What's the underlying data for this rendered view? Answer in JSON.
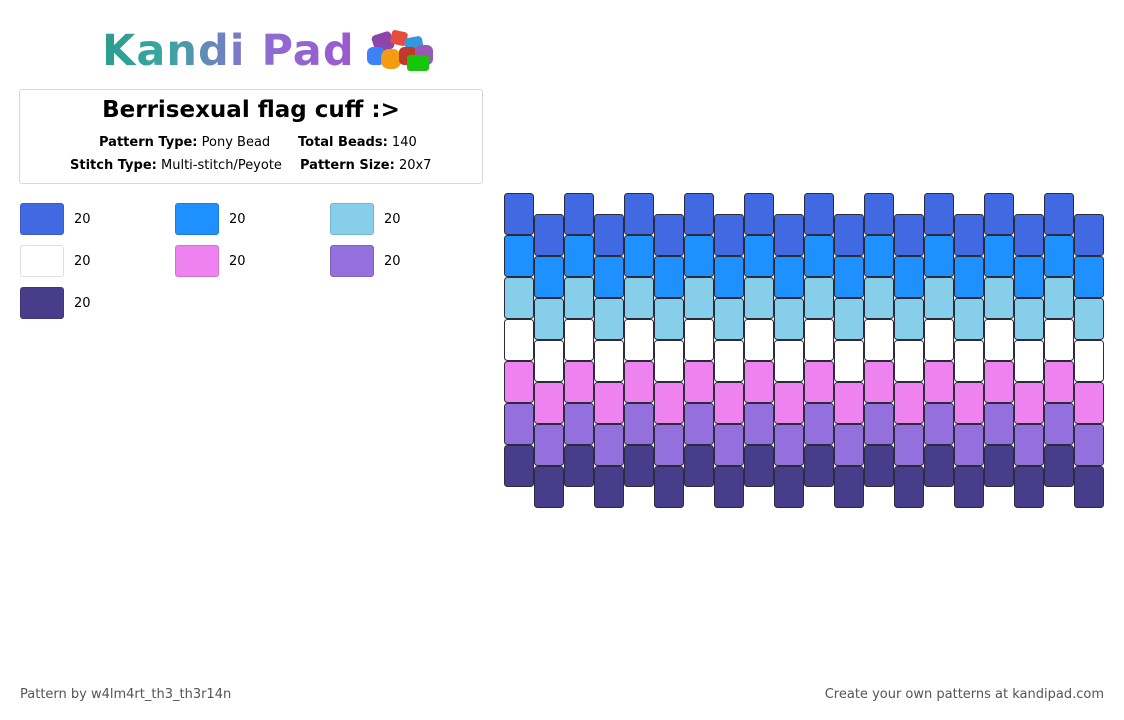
{
  "brand": {
    "name": "Kandi Pad"
  },
  "pattern": {
    "title": "Berrisexual flag cuff :>",
    "type_label": "Pattern Type:",
    "type_value": "Pony Bead",
    "beads_label": "Total Beads:",
    "beads_value": "140",
    "stitch_label": "Stitch Type:",
    "stitch_value": "Multi-stitch/Peyote",
    "size_label": "Pattern Size:",
    "size_value": "20x7"
  },
  "legend": [
    {
      "color": "#4169e1",
      "count": "20"
    },
    {
      "color": "#1e90ff",
      "count": "20"
    },
    {
      "color": "#87ceeb",
      "count": "20"
    },
    {
      "color": "#ffffff",
      "count": "20"
    },
    {
      "color": "#ee82ee",
      "count": "20"
    },
    {
      "color": "#9370db",
      "count": "20"
    },
    {
      "color": "#483d8b",
      "count": "20"
    }
  ],
  "grid": {
    "columns": 20,
    "rows": 7,
    "row_colors": [
      "#4169e1",
      "#1e90ff",
      "#87ceeb",
      "#ffffff",
      "#ee82ee",
      "#9370db",
      "#483d8b"
    ]
  },
  "footer": {
    "left": "Pattern by w4lm4rt_th3_th3r14n",
    "right": "Create your own patterns at kandipad.com"
  }
}
